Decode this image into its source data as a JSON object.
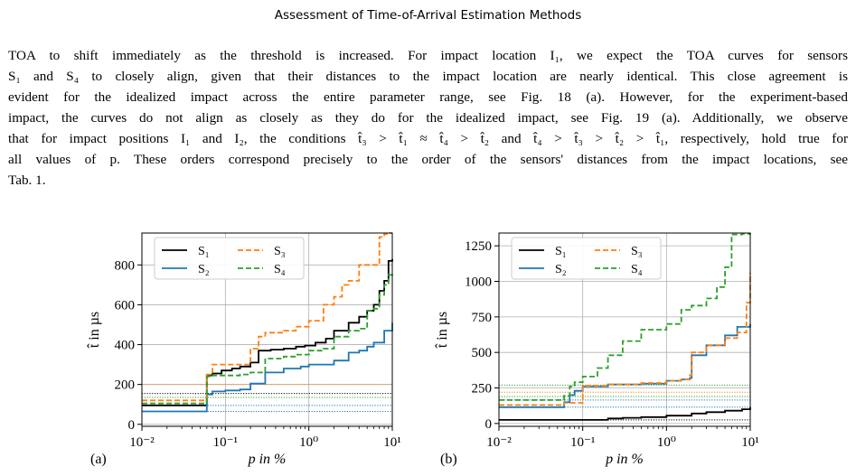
{
  "running_head": "Assessment of Time-of-Arrival Estimation Methods",
  "paragraph": {
    "lines": [
      "TOA to shift immediately as the threshold is increased. For impact location I₁, we expect the TOA curves for sensors",
      "S₁ and S₄ to closely align, given that their distances to the impact location are nearly identical. This close agreement is",
      "evident for the idealized impact across the entire parameter range, see Fig. 18 (a). However, for the experiment-based",
      "impact, the curves do not align as closely as they do for the idealized impact, see Fig. 19 (a). Additionally, we observe",
      "that for impact positions I₁ and I₂, the conditions t̂₃ > t̂₁ ≈ t̂₄ > t̂₂ and t̂₄ > t̂₃ > t̂₂ > t̂₁, respectively, hold true for",
      "all values of p. These orders correspond precisely to the order of the sensors' distances from the impact locations, see",
      "Tab. 1."
    ]
  },
  "colors": {
    "S1": "#000000",
    "S2": "#1f77b4",
    "S3": "#ff7f0e",
    "S4": "#2ca02c",
    "link": "#2a6a87"
  },
  "chart_data": [
    {
      "type": "line",
      "panel_label": "(a)",
      "xlabel": "p in %",
      "ylabel": "t̂ in µs",
      "xscale": "log",
      "xlim": [
        0.01,
        10
      ],
      "ylim": [
        -10,
        960
      ],
      "xticks": [
        "10⁻²",
        "10⁻¹",
        "10⁰",
        "10¹"
      ],
      "yticks": [
        0,
        200,
        400,
        600,
        800
      ],
      "grid": true,
      "legend": "top-left, 2 columns",
      "series": [
        {
          "name": "S₁",
          "color": "#000000",
          "dash": "solid",
          "x": [
            0.01,
            0.05,
            0.06,
            0.07,
            0.09,
            0.12,
            0.15,
            0.2,
            0.25,
            0.35,
            0.5,
            0.7,
            0.9,
            1.2,
            1.6,
            2,
            3,
            4,
            5,
            6,
            7,
            8,
            9,
            10
          ],
          "y": [
            95,
            95,
            245,
            255,
            270,
            280,
            290,
            310,
            370,
            375,
            380,
            390,
            395,
            410,
            430,
            470,
            510,
            540,
            570,
            600,
            670,
            720,
            820,
            830
          ]
        },
        {
          "name": "S₂",
          "color": "#1f77b4",
          "dash": "solid",
          "x": [
            0.01,
            0.05,
            0.06,
            0.07,
            0.1,
            0.15,
            0.2,
            0.3,
            0.5,
            0.8,
            1,
            2,
            3,
            4,
            5,
            6,
            8,
            10
          ],
          "y": [
            65,
            65,
            150,
            165,
            170,
            175,
            205,
            260,
            280,
            290,
            300,
            320,
            360,
            370,
            390,
            410,
            470,
            510
          ]
        },
        {
          "name": "S₃",
          "color": "#ff7f0e",
          "dash": "dashed",
          "x": [
            0.01,
            0.05,
            0.06,
            0.07,
            0.1,
            0.15,
            0.2,
            0.25,
            0.3,
            0.5,
            0.7,
            1,
            1.5,
            2,
            2.5,
            3,
            4,
            5,
            6,
            7,
            8,
            9,
            10
          ],
          "y": [
            120,
            120,
            250,
            300,
            300,
            300,
            380,
            440,
            460,
            470,
            490,
            520,
            600,
            640,
            700,
            720,
            800,
            800,
            800,
            940,
            955,
            960,
            960
          ]
        },
        {
          "name": "S₄",
          "color": "#2ca02c",
          "dash": "dashed",
          "x": [
            0.01,
            0.05,
            0.06,
            0.07,
            0.1,
            0.15,
            0.2,
            0.3,
            0.5,
            0.7,
            1,
            1.5,
            2,
            3,
            4,
            5,
            6,
            7,
            8,
            9,
            10
          ],
          "y": [
            105,
            105,
            240,
            245,
            245,
            250,
            260,
            330,
            340,
            350,
            370,
            380,
            440,
            470,
            480,
            570,
            580,
            650,
            700,
            750,
            760
          ]
        }
      ],
      "reference_lines": [
        {
          "color": "#ff7f0e",
          "y": 200
        },
        {
          "color": "#000000",
          "y": 155
        },
        {
          "color": "#2ca02c",
          "y": 135
        },
        {
          "color": "#1f77b4",
          "y": 95
        },
        {
          "color": "#1f77b4",
          "y": 65
        }
      ]
    },
    {
      "type": "line",
      "panel_label": "(b)",
      "xlabel": "p in %",
      "ylabel": "t̂ in µs",
      "xscale": "log",
      "xlim": [
        0.01,
        10
      ],
      "ylim": [
        -20,
        1340
      ],
      "xticks": [
        "10⁻²",
        "10⁻¹",
        "10⁰",
        "10¹"
      ],
      "yticks": [
        0,
        250,
        500,
        750,
        1000,
        1250
      ],
      "grid": true,
      "legend": "top-left, 2 columns",
      "series": [
        {
          "name": "S₁",
          "color": "#000000",
          "dash": "solid",
          "x": [
            0.01,
            0.1,
            0.2,
            0.3,
            0.5,
            1,
            2,
            3,
            5,
            8,
            10
          ],
          "y": [
            25,
            25,
            35,
            40,
            45,
            55,
            70,
            80,
            90,
            100,
            115
          ]
        },
        {
          "name": "S₂",
          "color": "#1f77b4",
          "dash": "solid",
          "x": [
            0.01,
            0.05,
            0.06,
            0.07,
            0.08,
            0.1,
            0.2,
            0.5,
            1,
            1.5,
            1.9,
            2,
            3,
            5,
            7,
            10
          ],
          "y": [
            115,
            115,
            150,
            200,
            230,
            260,
            275,
            280,
            300,
            310,
            320,
            480,
            550,
            620,
            680,
            700
          ]
        },
        {
          "name": "S₃",
          "color": "#ff7f0e",
          "dash": "dashed",
          "x": [
            0.01,
            0.05,
            0.06,
            0.1,
            0.2,
            0.5,
            1,
            1.5,
            1.9,
            2,
            3,
            5,
            7,
            9,
            10
          ],
          "y": [
            130,
            130,
            145,
            265,
            275,
            285,
            300,
            310,
            340,
            500,
            550,
            600,
            640,
            850,
            1060
          ]
        },
        {
          "name": "S₄",
          "color": "#2ca02c",
          "dash": "dashed",
          "x": [
            0.01,
            0.05,
            0.06,
            0.07,
            0.08,
            0.1,
            0.15,
            0.2,
            0.3,
            0.5,
            1,
            1.5,
            2,
            3,
            4,
            5,
            6,
            8,
            10
          ],
          "y": [
            165,
            165,
            195,
            260,
            290,
            330,
            390,
            480,
            580,
            660,
            700,
            800,
            830,
            880,
            960,
            1100,
            1330,
            1335,
            1340
          ]
        }
      ],
      "reference_lines": [
        {
          "color": "#2ca02c",
          "y": 270
        },
        {
          "color": "#ff7f0e",
          "y": 220
        },
        {
          "color": "#2ca02c",
          "y": 190
        },
        {
          "color": "#1f77b4",
          "y": 165
        },
        {
          "color": "#1f77b4",
          "y": 115
        },
        {
          "color": "#000000",
          "y": 25
        }
      ]
    }
  ]
}
